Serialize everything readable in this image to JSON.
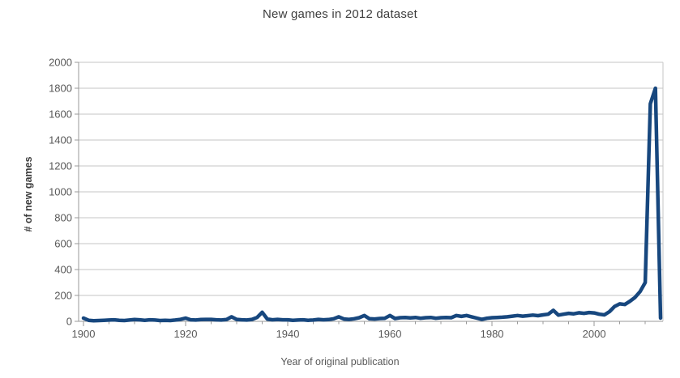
{
  "chart": {
    "title": "New games in 2012 dataset",
    "x_axis_title": "Year of original publication",
    "y_axis_title": "# of new games"
  },
  "chart_data": {
    "type": "line",
    "title": "New games in 2012 dataset",
    "xlabel": "Year of original publication",
    "ylabel": "# of new games",
    "x_start": 1900,
    "x_step": 1,
    "x_end": 2013,
    "xlim": [
      1900,
      2013
    ],
    "ylim": [
      0,
      2000
    ],
    "x_major_ticks": [
      1900,
      1920,
      1940,
      1960,
      1980,
      2000
    ],
    "x_minor_tick_step": 5,
    "y_tick_step": 200,
    "y_tick_labels": [
      "0",
      "200",
      "400",
      "600",
      "800",
      "1000",
      "1200",
      "1400",
      "1600",
      "1800",
      "2000"
    ],
    "grid": "horizontal",
    "legend": "none",
    "line_color": "#17477E",
    "grid_color": "#c6c6c6",
    "axis_color": "#999999",
    "label_color": "#595959",
    "title_color": "#3c3c3c",
    "values": [
      25,
      8,
      5,
      6,
      8,
      10,
      12,
      8,
      6,
      10,
      14,
      12,
      8,
      12,
      10,
      6,
      8,
      6,
      10,
      15,
      25,
      12,
      10,
      14,
      15,
      15,
      12,
      10,
      14,
      35,
      15,
      12,
      10,
      15,
      30,
      70,
      18,
      12,
      15,
      12,
      12,
      8,
      10,
      12,
      8,
      10,
      15,
      12,
      14,
      20,
      35,
      18,
      15,
      20,
      28,
      45,
      20,
      18,
      22,
      24,
      45,
      22,
      28,
      30,
      26,
      30,
      24,
      28,
      30,
      24,
      28,
      30,
      28,
      45,
      38,
      45,
      35,
      25,
      15,
      24,
      28,
      30,
      32,
      35,
      40,
      45,
      40,
      44,
      48,
      44,
      50,
      55,
      85,
      48,
      55,
      62,
      58,
      66,
      62,
      68,
      65,
      55,
      50,
      75,
      115,
      135,
      130,
      155,
      185,
      230,
      300,
      1680,
      1800,
      25
    ]
  }
}
